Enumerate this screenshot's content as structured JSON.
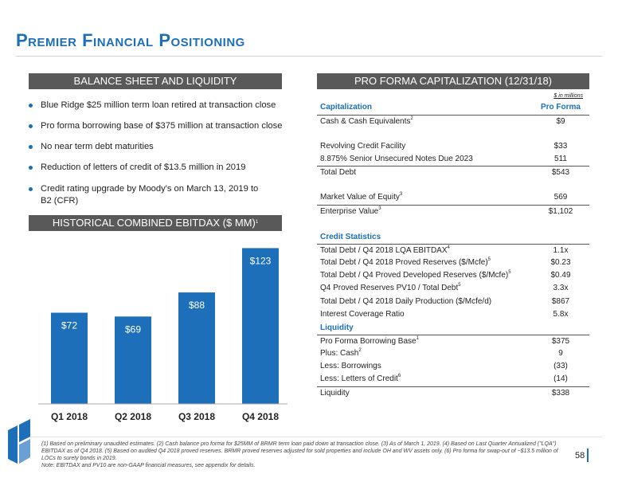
{
  "title": "Premier Financial Positioning",
  "balance_sheet": {
    "header": "BALANCE SHEET AND LIQUIDITY",
    "bullets": [
      "Blue Ridge $25 million term loan retired at transaction close",
      "Pro forma borrowing base of $375 million at transaction close",
      "No near term debt maturities",
      "Reduction of letters of credit of $13.5 million in 2019",
      "Credit rating upgrade by Moody's on March 13, 2019 to B2 (CFR)"
    ]
  },
  "ebitdax": {
    "header": "HISTORICAL COMBINED EBITDAX ($ MM)",
    "header_sup": "1"
  },
  "chart_data": {
    "type": "bar",
    "categories": [
      "Q1 2018",
      "Q2 2018",
      "Q3 2018",
      "Q4 2018"
    ],
    "values": [
      72,
      69,
      88,
      123
    ],
    "value_labels": [
      "$72",
      "$69",
      "$88",
      "$123"
    ],
    "bar_color": "#1c6fb8",
    "grid": false
  },
  "capitalization": {
    "header": "PRO FORMA CAPITALIZATION (12/31/18)",
    "units": "$ in millions",
    "col_label": "Capitalization",
    "col_value": "Pro Forma",
    "rows": [
      {
        "label": "Cash & Cash Equivalents",
        "sup": "2",
        "value": "$9"
      },
      {
        "label": "Revolving Credit Facility",
        "sup": "",
        "value": "$33"
      },
      {
        "label": "8.875% Senior Unsecured Notes Due 2023",
        "sup": "",
        "value": "511"
      },
      {
        "label": "Total Debt",
        "sup": "",
        "value": "$543"
      },
      {
        "label": "Market Value of Equity",
        "sup": "3",
        "value": "569"
      },
      {
        "label": "Enterprise Value",
        "sup": "3",
        "value": "$1,102"
      }
    ],
    "credit_stats_title": "Credit Statistics",
    "credit_stats": [
      {
        "label": "Total Debt / Q4 2018 LQA EBITDAX",
        "sup": "4",
        "value": "1.1x"
      },
      {
        "label": "Total Debt / Q4 2018 Proved Reserves ($/Mcfe)",
        "sup": "5",
        "value": "$0.23"
      },
      {
        "label": "Total Debt / Q4 Proved Developed Reserves ($/Mcfe)",
        "sup": "5",
        "value": "$0.49"
      },
      {
        "label": "Q4 Proved Reserves PV10 / Total Debt",
        "sup": "5",
        "value": "3.3x"
      },
      {
        "label": "Total Debt / Q4 2018 Daily Production ($/Mcfe/d)",
        "sup": "",
        "value": "$867"
      },
      {
        "label": "Interest Coverage Ratio",
        "sup": "",
        "value": "5.8x"
      }
    ],
    "liquidity_title": "Liquidity",
    "liquidity": [
      {
        "label": "Pro Forma Borrowing Base",
        "sup": "1",
        "value": "$375"
      },
      {
        "label": "Plus: Cash",
        "sup": "2",
        "value": "9"
      },
      {
        "label": "Less: Borrowings",
        "sup": "",
        "value": "(33)"
      },
      {
        "label": "Less: Letters of Credit",
        "sup": "6",
        "value": "(14)"
      },
      {
        "label": "Liquidity",
        "sup": "",
        "value": "$338"
      }
    ]
  },
  "footnote": "(1) Based on preliminary unaudited estimates. (2) Cash balance pro forma for $25MM of BRMR term loan paid down at transaction close. (3) As of March 1, 2019. (4) Based on Last Quarter Annualized (\"LQA\") EBITDAX as of Q4 2018. (5) Based on audited Q4 2018 proved reserves. BRMR proved reserves adjusted for sold properties and include OH and WV assets only. (6) Pro forma for swap-out of ~$13.5 million of LOCs to surety bonds in 2019.",
  "footnote_note": "Note: EBITDAX and PV10 are non-GAAP financial measures, see appendix for details.",
  "page_number": "58"
}
